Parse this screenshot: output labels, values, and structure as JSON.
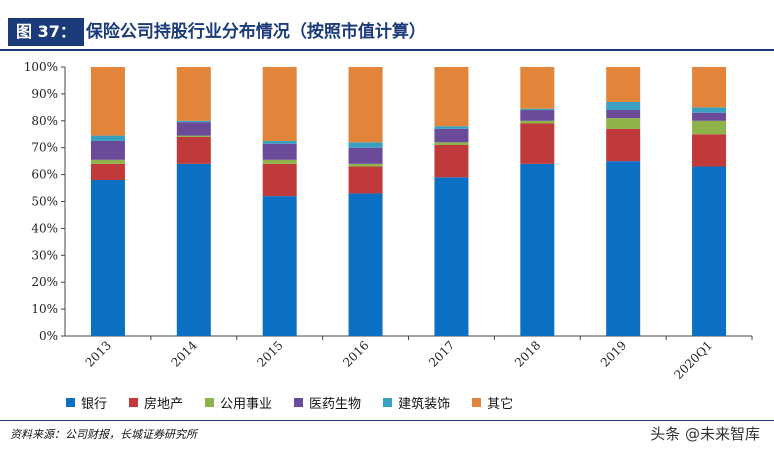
{
  "header": {
    "figure_tag": "图 37：",
    "title": "保险公司持股行业分布情况（按照市值计算）"
  },
  "chart_data": {
    "type": "bar",
    "stacked": true,
    "categories": [
      "2013",
      "2014",
      "2015",
      "2016",
      "2017",
      "2018",
      "2019",
      "2020Q1"
    ],
    "ylim": [
      0,
      100
    ],
    "yticks": [
      "0%",
      "10%",
      "20%",
      "30%",
      "40%",
      "50%",
      "60%",
      "70%",
      "80%",
      "90%",
      "100%"
    ],
    "grid": false,
    "legend_position": "bottom",
    "series": [
      {
        "name": "银行",
        "color": "#0b6fc4",
        "values": [
          58,
          64,
          52,
          53,
          59,
          64,
          65,
          63
        ]
      },
      {
        "name": "房地产",
        "color": "#c0393b",
        "values": [
          6,
          10,
          12,
          10,
          12,
          15,
          12,
          12
        ]
      },
      {
        "name": "公用事业",
        "color": "#8db34a",
        "values": [
          1.5,
          0.5,
          1.5,
          1,
          1,
          1,
          4,
          5
        ]
      },
      {
        "name": "医药生物",
        "color": "#6b4a9a",
        "values": [
          7,
          5,
          6,
          6,
          5,
          4,
          3,
          3
        ]
      },
      {
        "name": "建筑装饰",
        "color": "#3aa0c0",
        "values": [
          2,
          0.5,
          1,
          2,
          1,
          0.5,
          3,
          2
        ]
      },
      {
        "name": "其它",
        "color": "#e2853a",
        "values": [
          25.5,
          20,
          27.5,
          28,
          22,
          15.5,
          13,
          15
        ]
      }
    ]
  },
  "footer": {
    "source": "资料来源：公司财报，长城证券研究所",
    "watermark": "头条 @未来智库"
  }
}
